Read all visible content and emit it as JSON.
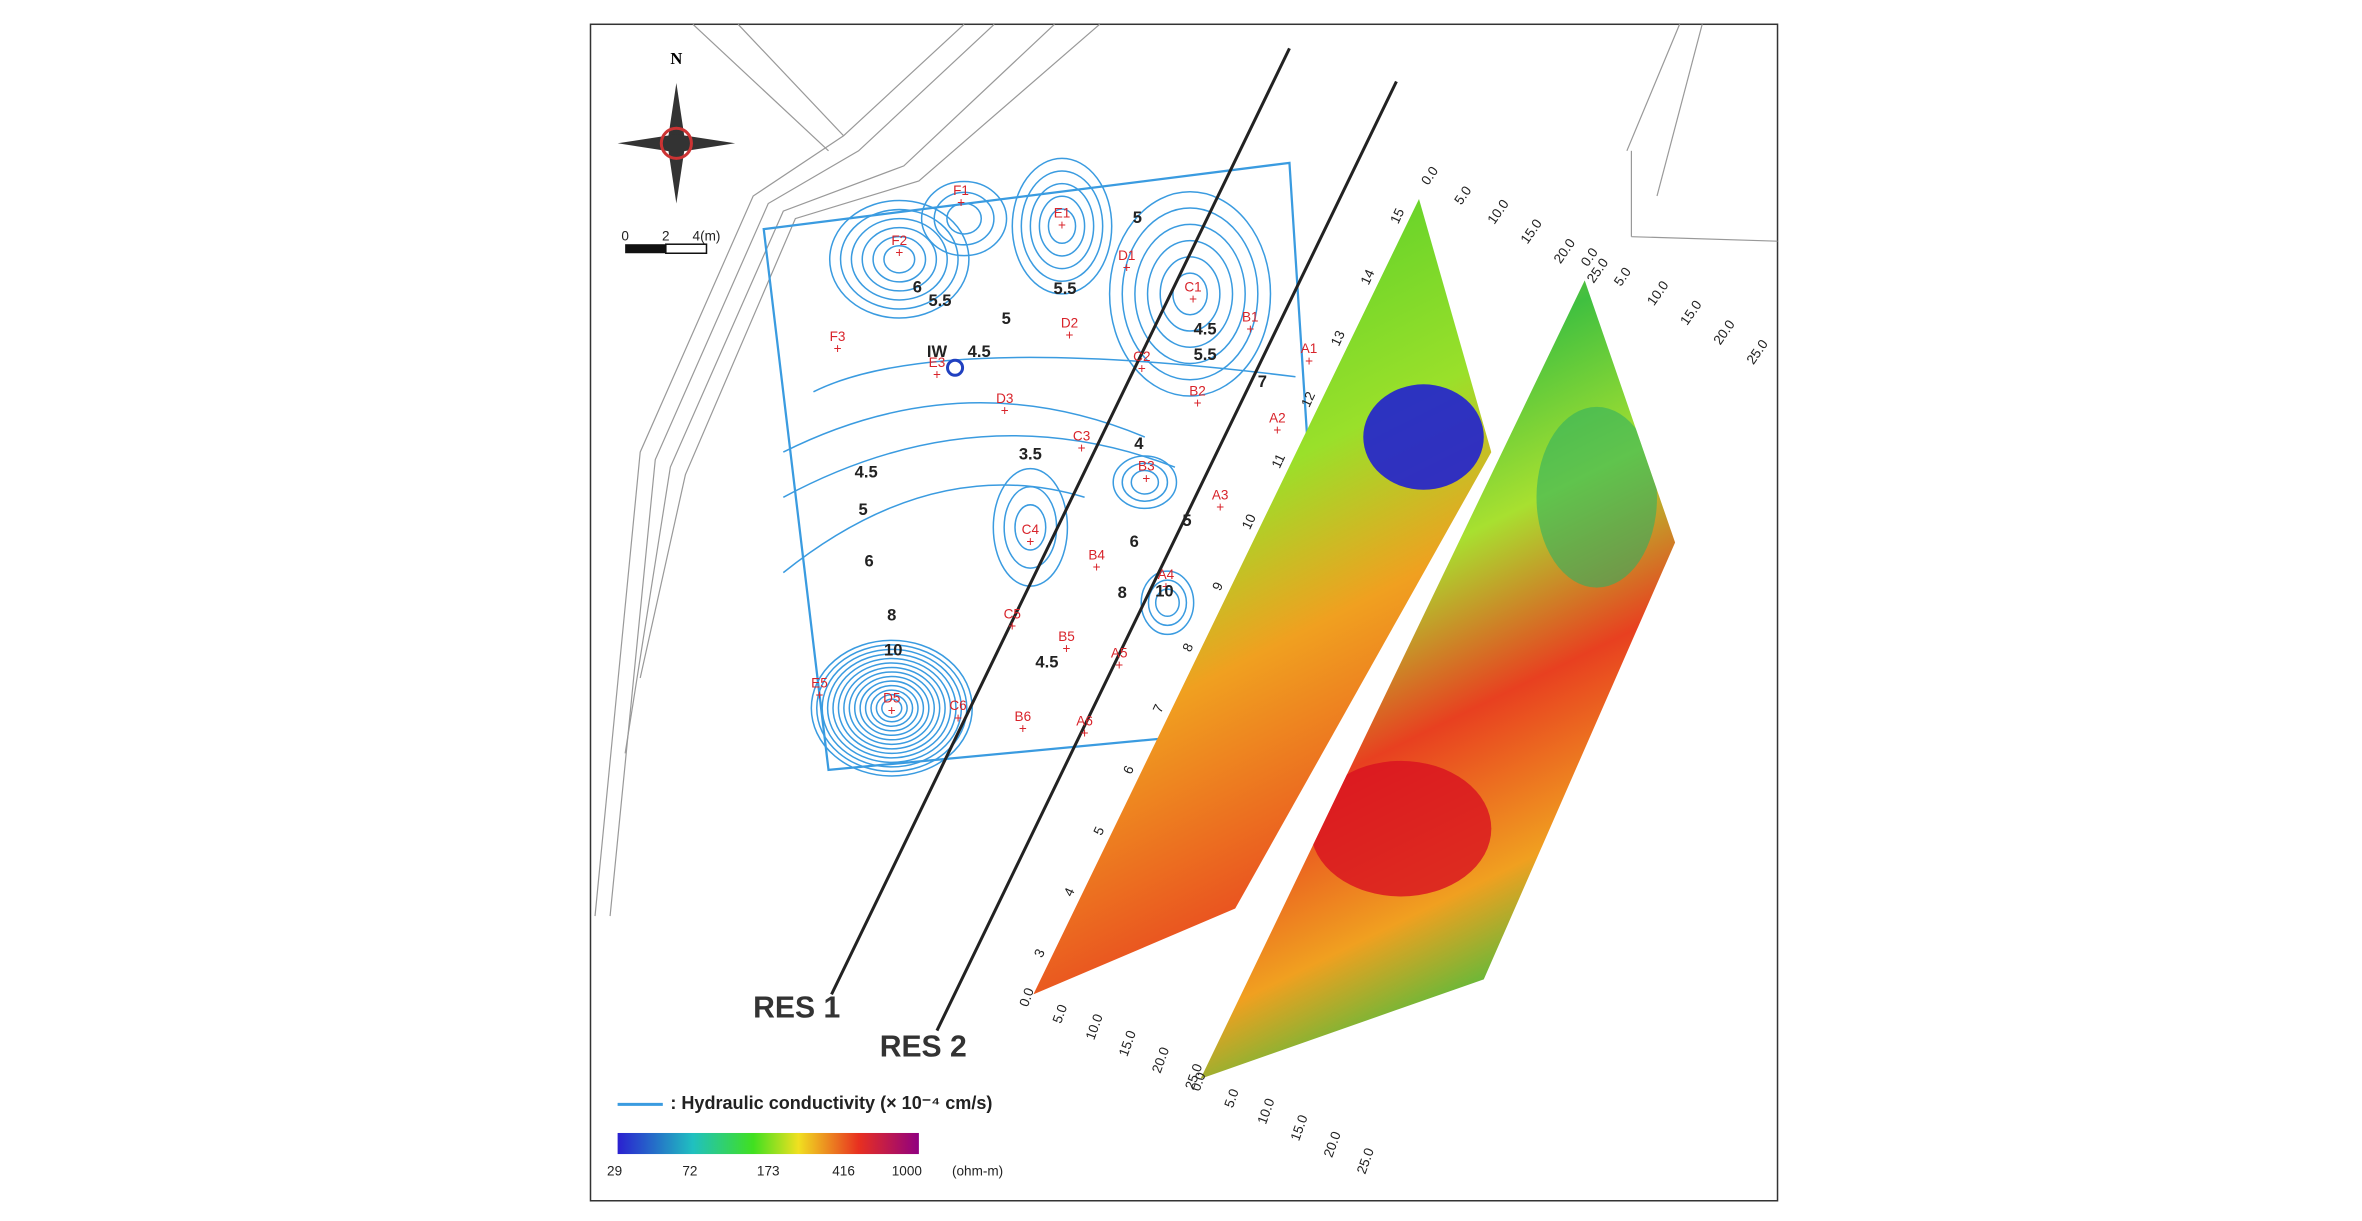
{
  "map": {
    "north": "N",
    "scale": [
      "0",
      "2",
      "4(m)"
    ],
    "wells": [
      "F1",
      "F2",
      "E1",
      "D1",
      "C1",
      "B1",
      "A1",
      "F3",
      "E3",
      "D2",
      "C2",
      "B2",
      "A2",
      "D3",
      "C3",
      "B3",
      "A3",
      "C4",
      "B4",
      "A4",
      "C5",
      "B5",
      "A5",
      "E5",
      "D5",
      "C6",
      "B6",
      "A6"
    ],
    "injection_well": "IW",
    "contour_labels": [
      "5",
      "6",
      "5.5",
      "5.5",
      "5",
      "4.5",
      "5.5",
      "4.5",
      "7",
      "3.5",
      "4",
      "4.5",
      "5",
      "5",
      "6",
      "6",
      "8",
      "10",
      "8",
      "10",
      "4.5"
    ],
    "lines": [
      "RES 1",
      "RES 2"
    ]
  },
  "legend": {
    "hydraulic": ": Hydraulic conductivity (× 10⁻⁴ cm/s)",
    "colorbar": [
      "29",
      "72",
      "173",
      "416",
      "1000"
    ],
    "unit": "(ohm-m)"
  },
  "panels": [
    {
      "distance": [
        "0.0",
        "5.0",
        "10.0",
        "15.0",
        "20.0",
        "25.0"
      ],
      "bottom_distance": [
        "0.0",
        "5.0",
        "10.0",
        "15.0",
        "20.0",
        "25.0"
      ],
      "depth": [
        "15",
        "14",
        "13",
        "12",
        "11",
        "10",
        "9",
        "8",
        "7",
        "6",
        "5",
        "4",
        "3"
      ]
    },
    {
      "distance": [
        "0.0",
        "5.0",
        "10.0",
        "15.0",
        "20.0",
        "25.0"
      ],
      "bottom_distance": [
        "0.0",
        "5.0",
        "10.0",
        "15.0",
        "20.0",
        "25.0"
      ]
    }
  ]
}
